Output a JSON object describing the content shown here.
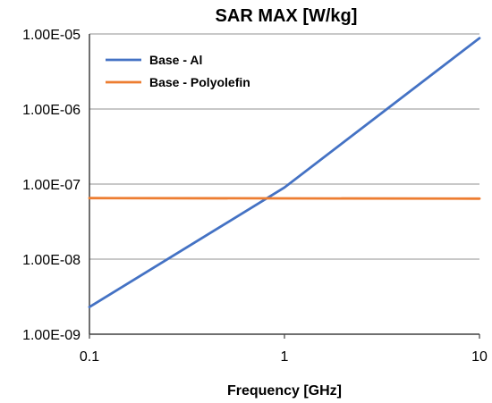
{
  "chart_data": {
    "type": "line",
    "title": "SAR MAX [W/kg]",
    "xlabel": "Frequency [GHz]",
    "ylabel": "",
    "x_scale": "log",
    "y_scale": "log",
    "xlim": [
      0.1,
      10
    ],
    "ylim": [
      1e-09,
      1e-05
    ],
    "x_ticks": [
      0.1,
      1,
      10
    ],
    "x_tick_labels": [
      "0.1",
      "1",
      "10"
    ],
    "y_ticks": [
      1e-09,
      1e-08,
      1e-07,
      1e-06,
      1e-05
    ],
    "y_tick_labels": [
      "1.00E-09",
      "1.00E-08",
      "1.00E-07",
      "1.00E-06",
      "1.00E-05"
    ],
    "grid": "horizontal",
    "legend_position": "top-left",
    "series": [
      {
        "name": "Base - Al",
        "color": "#4472C4",
        "x": [
          0.1,
          1,
          10
        ],
        "y": [
          2.3e-09,
          9e-08,
          8.8e-06
        ]
      },
      {
        "name": "Base - Polyolefin",
        "color": "#ED7D31",
        "x": [
          0.1,
          10
        ],
        "y": [
          6.5e-08,
          6.4e-08
        ]
      }
    ]
  }
}
